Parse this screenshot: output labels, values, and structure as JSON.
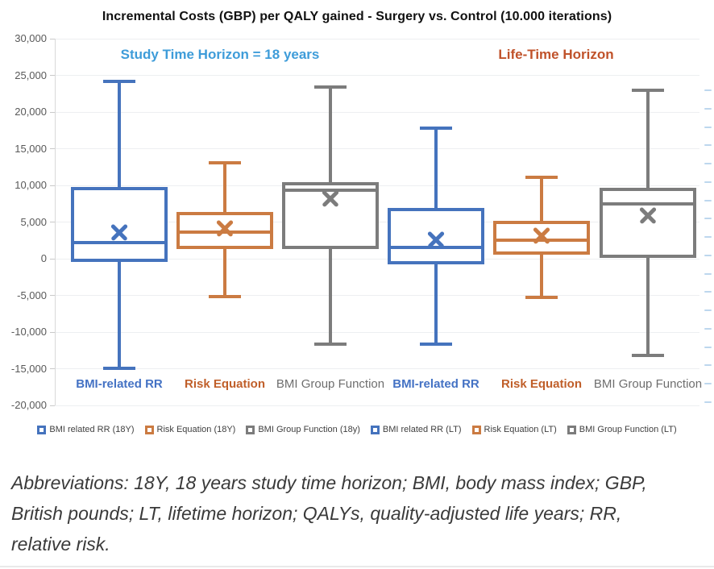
{
  "figure": {
    "title": "Incremental Costs (GBP) per QALY gained - Surgery vs. Control (10.000 iterations)",
    "caption": "Abbreviations: 18Y, 18 years study time horizon; BMI, body mass index; GBP, British pounds; LT, lifetime horizon; QALYs, quality-adjusted life years; RR, relative risk."
  },
  "annotations": [
    {
      "text": "Study Time Horizon = 18 years",
      "color": "#3E9CD9"
    },
    {
      "text": "Life-Time Horizon",
      "color": "#C0522A"
    }
  ],
  "chart_data": {
    "type": "boxplot",
    "title": "Incremental Costs (GBP) per QALY gained - Surgery vs. Control (10.000 iterations)",
    "ylim": [
      -20000,
      30000
    ],
    "ytick_step": 5000,
    "ytick_labels": [
      "30,000",
      "25,000",
      "20,000",
      "15,000",
      "10,000",
      "5,000",
      "0",
      "-5,000",
      "-10,000",
      "-15,000",
      "-20,000"
    ],
    "grid": true,
    "legend_position": "bottom",
    "mean_marker": "x",
    "series": [
      {
        "name": "BMI related RR (18Y)",
        "axis_label": "BMI-related RR",
        "color": "#4573BD",
        "label_color": "#4472C4",
        "stats": {
          "whisker_low": -14900,
          "q1": -200,
          "median": 2200,
          "mean": 3600,
          "q3": 9600,
          "whisker_high": 24200
        }
      },
      {
        "name": "Risk Equation (18Y)",
        "axis_label": "Risk Equation",
        "color": "#CB7B42",
        "label_color": "#C05F2A",
        "stats": {
          "whisker_low": -5200,
          "q1": 1500,
          "median": 3600,
          "mean": 4200,
          "q3": 6200,
          "whisker_high": 13100
        }
      },
      {
        "name": "BMI Group Function (18y)",
        "axis_label": "BMI Group Function",
        "color": "#7C7C7C",
        "label_color": "#6E6E6E",
        "stats": {
          "whisker_low": -11600,
          "q1": 1500,
          "median": 9300,
          "mean": 8200,
          "q3": 10200,
          "whisker_high": 23400
        }
      },
      {
        "name": "BMI related RR (LT)",
        "axis_label": "BMI-related RR",
        "color": "#4573BD",
        "label_color": "#4472C4",
        "stats": {
          "whisker_low": -11600,
          "q1": -600,
          "median": 1500,
          "mean": 2600,
          "q3": 6700,
          "whisker_high": 17800
        }
      },
      {
        "name": "Risk Equation (LT)",
        "axis_label": "Risk Equation",
        "color": "#CB7B42",
        "label_color": "#C05F2A",
        "stats": {
          "whisker_low": -5300,
          "q1": 800,
          "median": 2500,
          "mean": 3200,
          "q3": 4900,
          "whisker_high": 11100
        }
      },
      {
        "name": "BMI Group Function (LT)",
        "axis_label": "BMI Group Function",
        "color": "#7C7C7C",
        "label_color": "#6E6E6E",
        "stats": {
          "whisker_low": -13200,
          "q1": 300,
          "median": 7500,
          "mean": 5900,
          "q3": 9400,
          "whisker_high": 23000
        }
      }
    ]
  }
}
